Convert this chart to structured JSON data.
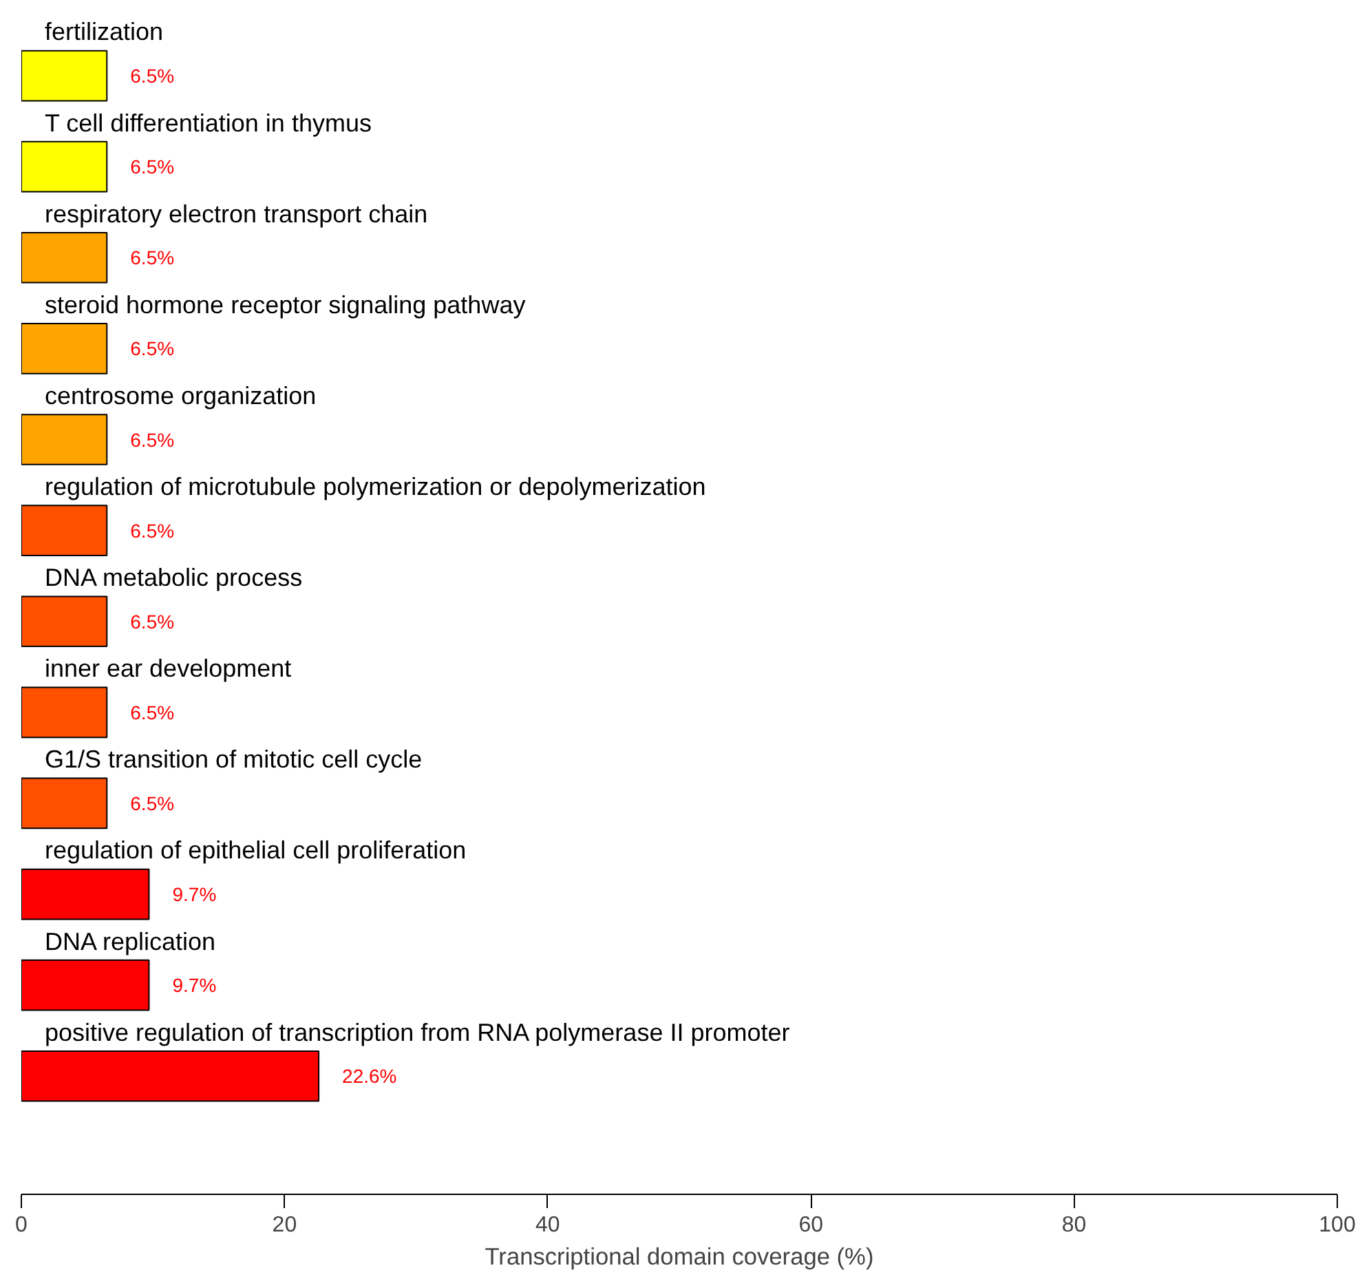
{
  "chart_data": {
    "type": "bar",
    "orientation": "horizontal",
    "xlabel": "Transcriptional domain coverage (%)",
    "categories": [
      "fertilization",
      "T cell differentiation in thymus",
      "respiratory electron transport chain",
      "steroid hormone receptor signaling pathway",
      "centrosome organization",
      "regulation of microtubule polymerization or depolymerization",
      "DNA metabolic process",
      "inner ear development",
      "G1/S transition of mitotic cell cycle",
      "regulation of epithelial cell proliferation",
      "DNA replication",
      "positive regulation of transcription from RNA polymerase II promoter"
    ],
    "values": [
      6.5,
      6.5,
      6.5,
      6.5,
      6.5,
      6.5,
      6.5,
      6.5,
      6.5,
      9.7,
      9.7,
      22.6
    ],
    "value_labels": [
      "6.5%",
      "6.5%",
      "6.5%",
      "6.5%",
      "6.5%",
      "6.5%",
      "6.5%",
      "6.5%",
      "6.5%",
      "9.7%",
      "9.7%",
      "22.6%"
    ],
    "colors": [
      "#ffff00",
      "#ffff00",
      "#ffa500",
      "#ffa500",
      "#ffa500",
      "#ff5000",
      "#ff5000",
      "#ff5000",
      "#ff5000",
      "#ff0000",
      "#ff0000",
      "#ff0000"
    ],
    "xlim": [
      0,
      100
    ],
    "xticks": [
      0,
      20,
      40,
      60,
      80,
      100
    ],
    "grid": false,
    "tick_labels": "x"
  }
}
